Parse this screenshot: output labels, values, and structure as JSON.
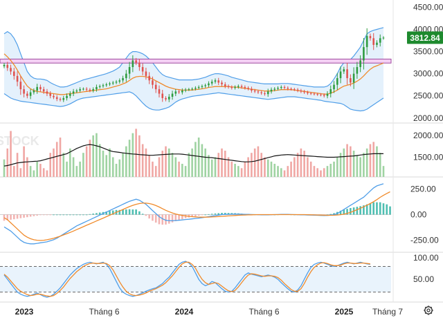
{
  "chart_data": {
    "type": "candlestick",
    "instrument_price_label": "3812.84",
    "colors": {
      "up": "#2e9c3f",
      "down": "#e0524e",
      "bollinger": "#4f9ee8",
      "bollinger_fill": "#d9ebfb",
      "ma_orange": "#f08a2a",
      "resistance_fill": "#f4d0f4",
      "resistance_stroke": "#a04aa0",
      "price_badge": "#1e8a2e",
      "volume_up": "#9fd3a2",
      "volume_down": "#f0a7a4",
      "volume_ma": "#111111",
      "macd_line": "#4f9ee8",
      "signal_line": "#f08a2a",
      "hist": "#2fb3a3",
      "stoch_k": "#4f9ee8",
      "stoch_d": "#f08a2a"
    },
    "time_axis": {
      "labels": [
        "2023",
        "Tháng 6",
        "2024",
        "Tháng 6",
        "2025",
        "Tháng 7"
      ],
      "bold": [
        true,
        false,
        true,
        false,
        true,
        false
      ],
      "positions": [
        0.0,
        0.22,
        0.44,
        0.66,
        0.88,
        1.0
      ]
    },
    "price_panel": {
      "ylim": [
        1950,
        4600
      ],
      "yticks": [
        "4500.00",
        "4000.00",
        "3500.00",
        "3000.00",
        "2500.00",
        "2000.00"
      ],
      "ytick_values": [
        4500,
        4000,
        3500,
        3000,
        2500,
        2000
      ],
      "resistance_zone": [
        3240,
        3330
      ],
      "closes": [
        3200,
        3130,
        3050,
        2950,
        2820,
        2650,
        2550,
        2500,
        2580,
        2620,
        2700,
        2650,
        2600,
        2550,
        2500,
        2470,
        2430,
        2410,
        2450,
        2500,
        2550,
        2600,
        2620,
        2650,
        2660,
        2640,
        2620,
        2650,
        2700,
        2720,
        2740,
        2760,
        2780,
        2800,
        2820,
        2850,
        2900,
        3000,
        3150,
        3300,
        3250,
        3150,
        3050,
        2950,
        2850,
        2750,
        2650,
        2550,
        2450,
        2420,
        2480,
        2550,
        2600,
        2580,
        2620,
        2640,
        2650,
        2660,
        2680,
        2700,
        2720,
        2740,
        2780,
        2820,
        2850,
        2800,
        2760,
        2720,
        2700,
        2680,
        2700,
        2720,
        2700,
        2680,
        2660,
        2620,
        2600,
        2580,
        2560,
        2540,
        2600,
        2640,
        2660,
        2680,
        2700,
        2680,
        2660,
        2650,
        2640,
        2620,
        2600,
        2580,
        2560,
        2550,
        2540,
        2530,
        2520,
        2500,
        2550,
        2650,
        2750,
        2900,
        3050,
        3100,
        2900,
        2800,
        3000,
        3150,
        3300,
        3600,
        3850,
        3800,
        3650,
        3700,
        3800,
        3812.84
      ],
      "bollinger_upper": [
        3900,
        3950,
        3900,
        3800,
        3650,
        3450,
        3250,
        3050,
        2950,
        2900,
        2880,
        2880,
        2870,
        2850,
        2800,
        2760,
        2730,
        2700,
        2700,
        2710,
        2740,
        2770,
        2800,
        2830,
        2860,
        2880,
        2900,
        2920,
        2940,
        2960,
        2980,
        3000,
        3030,
        3060,
        3100,
        3150,
        3250,
        3350,
        3450,
        3500,
        3500,
        3480,
        3450,
        3400,
        3330,
        3250,
        3150,
        3050,
        2980,
        2940,
        2920,
        2900,
        2880,
        2860,
        2860,
        2860,
        2860,
        2860,
        2870,
        2880,
        2900,
        2920,
        2950,
        2980,
        3000,
        3000,
        2990,
        2970,
        2950,
        2920,
        2900,
        2880,
        2860,
        2840,
        2820,
        2810,
        2800,
        2790,
        2780,
        2770,
        2770,
        2770,
        2770,
        2770,
        2780,
        2780,
        2780,
        2770,
        2760,
        2750,
        2740,
        2730,
        2720,
        2710,
        2700,
        2700,
        2700,
        2700,
        2720,
        2780,
        2880,
        3000,
        3150,
        3250,
        3300,
        3320,
        3400,
        3500,
        3600,
        3750,
        3900,
        3950,
        3980,
        4000,
        4020,
        4040
      ],
      "bollinger_lower": [
        2550,
        2500,
        2450,
        2420,
        2400,
        2380,
        2370,
        2360,
        2350,
        2340,
        2330,
        2320,
        2310,
        2300,
        2290,
        2280,
        2270,
        2260,
        2270,
        2290,
        2320,
        2360,
        2400,
        2430,
        2450,
        2460,
        2470,
        2480,
        2490,
        2500,
        2510,
        2520,
        2530,
        2540,
        2550,
        2560,
        2570,
        2580,
        2590,
        2560,
        2500,
        2420,
        2340,
        2270,
        2220,
        2190,
        2180,
        2180,
        2200,
        2220,
        2250,
        2300,
        2360,
        2400,
        2430,
        2450,
        2470,
        2490,
        2500,
        2510,
        2520,
        2530,
        2540,
        2550,
        2560,
        2570,
        2560,
        2550,
        2540,
        2530,
        2520,
        2510,
        2500,
        2490,
        2480,
        2470,
        2460,
        2450,
        2440,
        2430,
        2420,
        2430,
        2440,
        2450,
        2460,
        2470,
        2480,
        2480,
        2480,
        2470,
        2460,
        2450,
        2440,
        2430,
        2420,
        2410,
        2400,
        2380,
        2370,
        2360,
        2350,
        2340,
        2330,
        2300,
        2250,
        2200,
        2180,
        2170,
        2160,
        2170,
        2200,
        2250,
        2300,
        2350,
        2400,
        2450
      ],
      "ma_orange": [
        3450,
        3380,
        3300,
        3200,
        3080,
        2950,
        2830,
        2720,
        2660,
        2620,
        2600,
        2590,
        2580,
        2570,
        2560,
        2550,
        2540,
        2530,
        2530,
        2540,
        2550,
        2560,
        2570,
        2580,
        2590,
        2600,
        2610,
        2620,
        2630,
        2640,
        2650,
        2660,
        2680,
        2700,
        2720,
        2740,
        2770,
        2800,
        2850,
        2900,
        2930,
        2940,
        2940,
        2930,
        2910,
        2880,
        2840,
        2800,
        2760,
        2720,
        2690,
        2670,
        2650,
        2640,
        2630,
        2630,
        2630,
        2630,
        2640,
        2650,
        2660,
        2670,
        2690,
        2700,
        2710,
        2710,
        2710,
        2710,
        2710,
        2700,
        2700,
        2690,
        2680,
        2670,
        2660,
        2650,
        2640,
        2630,
        2620,
        2610,
        2610,
        2610,
        2620,
        2630,
        2640,
        2640,
        2640,
        2640,
        2630,
        2620,
        2610,
        2600,
        2590,
        2580,
        2570,
        2560,
        2550,
        2540,
        2540,
        2560,
        2590,
        2630,
        2680,
        2720,
        2740,
        2760,
        2790,
        2830,
        2880,
        2950,
        3030,
        3100,
        3150,
        3180,
        3210,
        3240
      ]
    },
    "volume_panel": {
      "ylim": [
        1050,
        2250
      ],
      "yticks": [
        "2000.00",
        "1500.00"
      ],
      "ytick_values": [
        2000,
        1500
      ],
      "watermark": "STOCK",
      "volume_ma": [
        1300,
        1310,
        1330,
        1350,
        1370,
        1380,
        1390,
        1395,
        1400,
        1405,
        1410,
        1420,
        1440,
        1460,
        1480,
        1500,
        1520,
        1540,
        1560,
        1580,
        1620,
        1660,
        1700,
        1730,
        1760,
        1780,
        1790,
        1780,
        1760,
        1740,
        1710,
        1680,
        1650,
        1630,
        1620,
        1610,
        1600,
        1590,
        1580,
        1575,
        1570,
        1560,
        1555,
        1550,
        1545,
        1545,
        1550,
        1555,
        1560,
        1565,
        1570,
        1575,
        1575,
        1575,
        1570,
        1560,
        1550,
        1540,
        1530,
        1520,
        1510,
        1500,
        1495,
        1490,
        1480,
        1470,
        1460,
        1450,
        1440,
        1430,
        1420,
        1410,
        1400,
        1395,
        1395,
        1400,
        1410,
        1430,
        1450,
        1470,
        1490,
        1510,
        1530,
        1540,
        1550,
        1555,
        1560,
        1555,
        1550,
        1545,
        1540,
        1535,
        1530,
        1525,
        1520,
        1515,
        1510,
        1505,
        1500,
        1500,
        1500,
        1505,
        1510,
        1515,
        1520,
        1525,
        1530,
        1540,
        1550,
        1560,
        1570,
        1575,
        1580,
        1580,
        1580,
        1580
      ],
      "volumes": [
        1450,
        1700,
        2100,
        1300,
        1600,
        1250,
        1750,
        1500,
        1300,
        1200,
        1400,
        1350,
        1250,
        1200,
        1600,
        1700,
        1850,
        1950,
        1600,
        1400,
        1700,
        1500,
        1300,
        1400,
        1600,
        1750,
        1900,
        2000,
        2050,
        1800,
        1650,
        1550,
        1700,
        1500,
        1350,
        1450,
        1600,
        1750,
        1900,
        2050,
        2150,
        2000,
        1800,
        1700,
        1550,
        1400,
        1300,
        1500,
        1650,
        1750,
        1700,
        1600,
        1500,
        1400,
        1350,
        1300,
        1600,
        1700,
        1850,
        1950,
        1800,
        1700,
        1550,
        1450,
        1500,
        1600,
        1700,
        1650,
        1500,
        1400,
        1350,
        1300,
        1250,
        1400,
        1500,
        1600,
        1700,
        1750,
        1600,
        1500,
        1450,
        1400,
        1350,
        1300,
        1250,
        1200,
        1300,
        1400,
        1500,
        1600,
        1700,
        1650,
        1500,
        1400,
        1300,
        1250,
        1200,
        1250,
        1300,
        1350,
        1400,
        1500,
        1600,
        1700,
        1800,
        1750,
        1650,
        1550,
        1500,
        1600,
        1700,
        1800,
        1850,
        1750,
        1600,
        1300
      ]
    },
    "macd_panel": {
      "ylim": [
        -340,
        340
      ],
      "yticks": [
        "250.00",
        "0.00",
        "-250.00"
      ],
      "ytick_values": [
        250,
        0,
        -250
      ],
      "macd": [
        -120,
        -140,
        -160,
        -190,
        -220,
        -250,
        -270,
        -280,
        -285,
        -285,
        -280,
        -275,
        -270,
        -265,
        -255,
        -245,
        -230,
        -210,
        -190,
        -170,
        -150,
        -130,
        -110,
        -95,
        -80,
        -65,
        -50,
        -35,
        -20,
        -5,
        10,
        25,
        40,
        55,
        70,
        85,
        100,
        115,
        130,
        140,
        150,
        140,
        120,
        100,
        70,
        40,
        10,
        -20,
        -40,
        -55,
        -60,
        -60,
        -58,
        -55,
        -52,
        -48,
        -45,
        -42,
        -38,
        -34,
        -30,
        -25,
        -20,
        -15,
        -10,
        -5,
        0,
        2,
        3,
        4,
        5,
        5,
        4,
        3,
        2,
        1,
        0,
        -1,
        -2,
        -3,
        -2,
        -1,
        0,
        1,
        2,
        3,
        2,
        1,
        0,
        -1,
        -2,
        -3,
        -4,
        -5,
        -6,
        -7,
        -8,
        -9,
        -8,
        -5,
        0,
        10,
        30,
        50,
        70,
        90,
        110,
        130,
        150,
        170,
        200,
        230,
        260,
        280,
        290,
        300
      ],
      "signal": [
        -30,
        -50,
        -80,
        -110,
        -140,
        -170,
        -200,
        -220,
        -235,
        -245,
        -250,
        -252,
        -250,
        -245,
        -238,
        -230,
        -220,
        -210,
        -198,
        -186,
        -174,
        -160,
        -146,
        -132,
        -118,
        -104,
        -90,
        -76,
        -62,
        -48,
        -34,
        -20,
        -6,
        8,
        22,
        36,
        50,
        64,
        78,
        90,
        100,
        108,
        112,
        112,
        108,
        100,
        88,
        74,
        58,
        42,
        28,
        16,
        6,
        -2,
        -8,
        -13,
        -17,
        -20,
        -22,
        -24,
        -25,
        -25,
        -24,
        -23,
        -21,
        -19,
        -17,
        -15,
        -13,
        -11,
        -9,
        -7,
        -5,
        -4,
        -3,
        -2,
        -1,
        0,
        0,
        0,
        0,
        0,
        0,
        0,
        0,
        0,
        0,
        0,
        0,
        0,
        0,
        0,
        -1,
        -2,
        -3,
        -4,
        -5,
        -6,
        -7,
        -7,
        -6,
        -4,
        -1,
        4,
        12,
        22,
        34,
        48,
        62,
        76,
        92,
        108,
        126,
        146,
        168,
        188,
        206,
        222
      ],
      "histogram": [
        -60,
        -55,
        -50,
        -45,
        -40,
        -35,
        -30,
        -25,
        -20,
        -15,
        -10,
        -5,
        -3,
        -2,
        -1,
        0,
        0,
        0,
        0,
        0,
        0,
        0,
        0,
        0,
        0,
        0,
        5,
        10,
        15,
        20,
        25,
        30,
        35,
        40,
        45,
        45,
        50,
        50,
        52,
        50,
        50,
        32,
        8,
        -12,
        -38,
        -60,
        -78,
        -94,
        -98,
        -97,
        -88,
        -76,
        -64,
        -53,
        -44,
        -35,
        -28,
        -22,
        -16,
        -10,
        -5,
        0,
        4,
        8,
        11,
        14,
        17,
        17,
        16,
        15,
        14,
        12,
        9,
        7,
        5,
        3,
        1,
        -1,
        -2,
        -3,
        -2,
        -1,
        0,
        1,
        2,
        3,
        2,
        1,
        0,
        -1,
        -2,
        -3,
        -3,
        -4,
        -4,
        -5,
        -4,
        -3,
        0,
        6,
        14,
        26,
        38,
        48,
        56,
        64,
        70,
        76,
        82,
        90,
        100,
        110,
        120,
        120,
        120,
        110,
        100,
        80
      ]
    },
    "stoch_panel": {
      "ylim": [
        0,
        110
      ],
      "yticks": [
        "100.00",
        "50.00"
      ],
      "ytick_values": [
        100,
        50
      ],
      "dashed_levels": [
        80,
        20
      ],
      "k": [
        60,
        50,
        40,
        30,
        20,
        15,
        12,
        10,
        12,
        15,
        18,
        14,
        10,
        8,
        10,
        15,
        22,
        30,
        40,
        50,
        60,
        68,
        75,
        80,
        85,
        88,
        90,
        88,
        86,
        88,
        90,
        85,
        75,
        60,
        45,
        30,
        20,
        15,
        12,
        10,
        12,
        15,
        18,
        22,
        25,
        28,
        30,
        35,
        40,
        48,
        55,
        65,
        75,
        85,
        90,
        92,
        88,
        80,
        65,
        50,
        40,
        35,
        38,
        45,
        42,
        35,
        28,
        22,
        20,
        22,
        30,
        40,
        50,
        60,
        65,
        62,
        60,
        58,
        56,
        58,
        60,
        58,
        55,
        50,
        42,
        35,
        28,
        22,
        20,
        25,
        35,
        50,
        65,
        78,
        85,
        88,
        90,
        88,
        85,
        82,
        80,
        82,
        85,
        88,
        90,
        88,
        86,
        88,
        90,
        88,
        86,
        85
      ],
      "d": [
        62,
        55,
        46,
        37,
        28,
        22,
        18,
        14,
        12,
        13,
        15,
        15,
        13,
        11,
        10,
        12,
        17,
        24,
        32,
        42,
        52,
        60,
        68,
        74,
        80,
        84,
        87,
        88,
        87,
        87,
        88,
        87,
        82,
        72,
        58,
        44,
        32,
        22,
        16,
        13,
        12,
        13,
        15,
        18,
        22,
        25,
        28,
        32,
        36,
        42,
        50,
        58,
        68,
        78,
        86,
        90,
        90,
        85,
        76,
        62,
        50,
        42,
        38,
        40,
        42,
        40,
        34,
        28,
        23,
        21,
        24,
        32,
        42,
        52,
        60,
        63,
        62,
        60,
        58,
        57,
        58,
        58,
        57,
        54,
        48,
        40,
        33,
        26,
        22,
        22,
        28,
        40,
        55,
        68,
        78,
        84,
        88,
        89,
        87,
        84,
        82,
        82,
        83,
        86,
        88,
        88,
        87,
        87,
        88,
        88,
        87,
        86
      ]
    },
    "bar_count": 116
  }
}
